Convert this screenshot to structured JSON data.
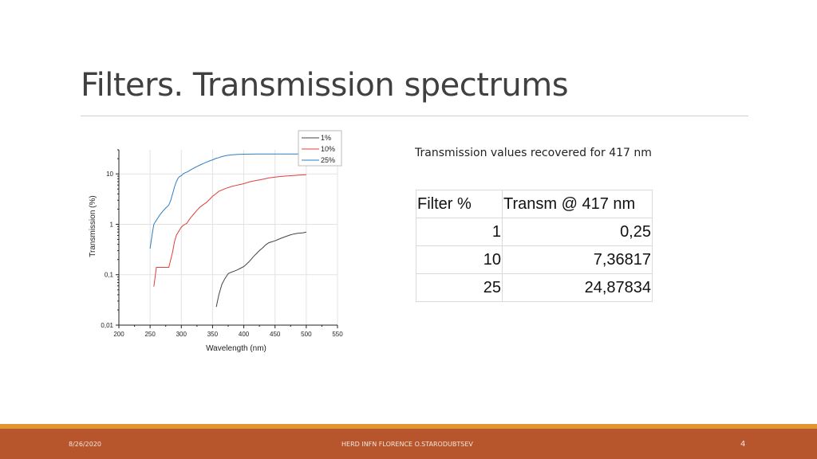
{
  "slide": {
    "title": "Filters. Transmission spectrums",
    "subtitle": "Transmission values recovered for 417 nm",
    "footer": {
      "date": "8/26/2020",
      "center": "HERD   INFN FLORENCE    O.STARODUBTSEV",
      "page": "4"
    },
    "colors": {
      "footer_band": "#b7552c",
      "footer_accent": "#e0952f"
    }
  },
  "table": {
    "headers": [
      "Filter %",
      "Transm @ 417 nm"
    ],
    "rows": [
      [
        "1",
        "0,25"
      ],
      [
        "10",
        "7,36817"
      ],
      [
        "25",
        "24,87834"
      ]
    ]
  },
  "chart_data": {
    "type": "line",
    "title": "",
    "xlabel": "Wavelength (nm)",
    "ylabel": "Transmission (%)",
    "xlim": [
      200,
      550
    ],
    "ylim": [
      0.01,
      30
    ],
    "yscale": "log",
    "grid": true,
    "legend_position": "top-right",
    "x_ticks": [
      200,
      250,
      300,
      350,
      400,
      450,
      500,
      550
    ],
    "x_tick_labels": [
      "200",
      "250",
      "300",
      "350",
      "400",
      "450",
      "500",
      "550"
    ],
    "y_ticks": [
      0.01,
      0.1,
      1,
      10
    ],
    "y_tick_labels": [
      "0,01",
      "0,1",
      "1",
      "10"
    ],
    "series": [
      {
        "name": "1%",
        "color": "#444444",
        "x": [
          356,
          360,
          365,
          370,
          375,
          380,
          385,
          390,
          395,
          400,
          405,
          410,
          415,
          420,
          425,
          430,
          435,
          440,
          445,
          450,
          455,
          460,
          465,
          470,
          475,
          480,
          485,
          490,
          495,
          500
        ],
        "y": [
          0.023,
          0.04,
          0.065,
          0.085,
          0.105,
          0.112,
          0.118,
          0.125,
          0.135,
          0.145,
          0.165,
          0.19,
          0.225,
          0.26,
          0.3,
          0.34,
          0.39,
          0.43,
          0.45,
          0.47,
          0.5,
          0.53,
          0.56,
          0.59,
          0.62,
          0.64,
          0.66,
          0.67,
          0.68,
          0.7
        ]
      },
      {
        "name": "10%",
        "color": "#e0403b",
        "x": [
          256,
          260,
          265,
          270,
          275,
          280,
          283,
          286,
          289,
          292,
          295,
          298,
          300,
          303,
          306,
          309,
          312,
          315,
          320,
          325,
          330,
          335,
          340,
          345,
          350,
          355,
          360,
          365,
          370,
          380,
          390,
          400,
          410,
          420,
          430,
          440,
          450,
          460,
          470,
          480,
          490,
          500
        ],
        "y": [
          0.058,
          0.14,
          0.14,
          0.14,
          0.14,
          0.14,
          0.2,
          0.28,
          0.45,
          0.6,
          0.7,
          0.8,
          0.88,
          0.95,
          1.0,
          1.05,
          1.2,
          1.35,
          1.6,
          1.9,
          2.2,
          2.45,
          2.7,
          3.1,
          3.6,
          4.0,
          4.5,
          4.8,
          5.1,
          5.6,
          6.0,
          6.4,
          7.0,
          7.4,
          7.8,
          8.3,
          8.6,
          8.9,
          9.1,
          9.3,
          9.5,
          9.6
        ]
      },
      {
        "name": "25%",
        "color": "#2f7ec3",
        "x": [
          250,
          253,
          256,
          260,
          265,
          270,
          275,
          280,
          283,
          286,
          289,
          292,
          295,
          298,
          300,
          303,
          306,
          310,
          315,
          320,
          325,
          330,
          335,
          340,
          345,
          350,
          355,
          360,
          365,
          370,
          375,
          380,
          390,
          400,
          420,
          440,
          460,
          480,
          500
        ],
        "y": [
          0.33,
          0.6,
          1.0,
          1.2,
          1.5,
          1.8,
          2.1,
          2.4,
          3.0,
          4.0,
          5.5,
          7.0,
          8.3,
          9.0,
          9.2,
          10.0,
          10.5,
          11.0,
          12.0,
          13.0,
          14.0,
          15.0,
          16.0,
          17.0,
          18.0,
          19.0,
          20.2,
          21.0,
          22.0,
          22.8,
          23.3,
          23.8,
          24.3,
          24.6,
          24.8,
          24.8,
          24.8,
          24.8,
          24.9
        ]
      }
    ]
  }
}
